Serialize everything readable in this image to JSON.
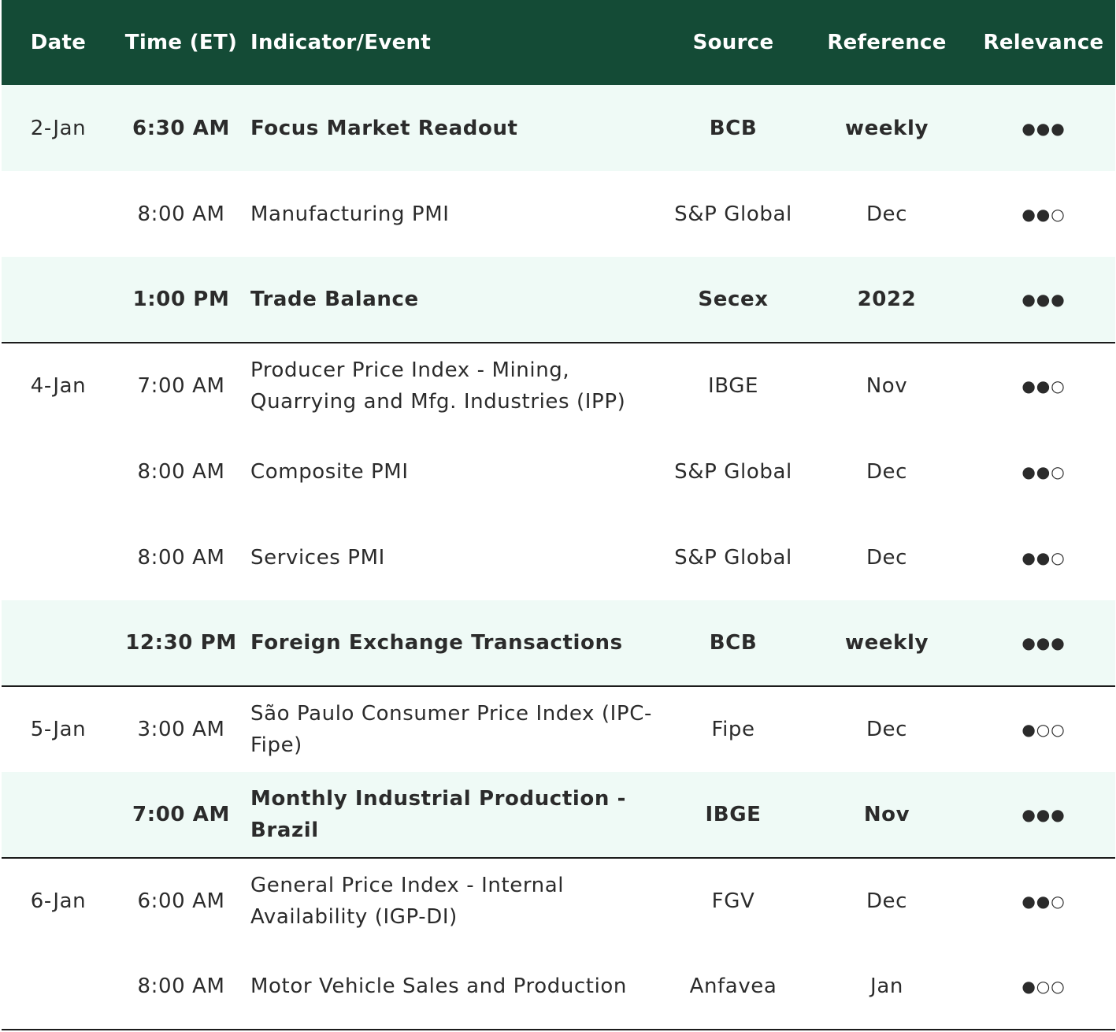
{
  "headers": [
    "Date",
    "Time (ET)",
    "Indicator/Event",
    "Source",
    "Reference",
    "Relevance"
  ],
  "rows": [
    {
      "date": "2-Jan",
      "time": "6:30 AM",
      "indicator": "Focus Market Readout",
      "source": "BCB",
      "reference": "weekly",
      "relevance": "●●●",
      "bold": true,
      "highlight": true,
      "group_end": false
    },
    {
      "date": "",
      "time": "8:00 AM",
      "indicator": "Manufacturing PMI",
      "source": "S&P Global",
      "reference": "Dec",
      "relevance": "●●○",
      "bold": false,
      "highlight": false,
      "group_end": false
    },
    {
      "date": "",
      "time": "1:00 PM",
      "indicator": "Trade Balance",
      "source": "Secex",
      "reference": "2022",
      "relevance": "●●●",
      "bold": true,
      "highlight": true,
      "group_end": true
    },
    {
      "date": "4-Jan",
      "time": "7:00 AM",
      "indicator": "Producer Price Index - Mining, Quarrying and Mfg. Industries (IPP)",
      "source": "IBGE",
      "reference": "Nov",
      "relevance": "●●○",
      "bold": false,
      "highlight": false,
      "group_end": false
    },
    {
      "date": "",
      "time": "8:00 AM",
      "indicator": "Composite PMI",
      "source": "S&P Global",
      "reference": "Dec",
      "relevance": "●●○",
      "bold": false,
      "highlight": false,
      "group_end": false
    },
    {
      "date": "",
      "time": "8:00 AM",
      "indicator": "Services PMI",
      "source": "S&P Global",
      "reference": "Dec",
      "relevance": "●●○",
      "bold": false,
      "highlight": false,
      "group_end": false
    },
    {
      "date": "",
      "time": "12:30 PM",
      "indicator": "Foreign Exchange Transactions",
      "source": "BCB",
      "reference": "weekly",
      "relevance": "●●●",
      "bold": true,
      "highlight": true,
      "group_end": true
    },
    {
      "date": "5-Jan",
      "time": "3:00 AM",
      "indicator": "São Paulo Consumer Price Index (IPC-Fipe)",
      "source": "Fipe",
      "reference": "Dec",
      "relevance": "●○○",
      "bold": false,
      "highlight": false,
      "group_end": false
    },
    {
      "date": "",
      "time": "7:00 AM",
      "indicator": "Monthly Industrial Production - Brazil",
      "source": "IBGE",
      "reference": "Nov",
      "relevance": "●●●",
      "bold": true,
      "highlight": true,
      "group_end": true
    },
    {
      "date": "6-Jan",
      "time": "6:00 AM",
      "indicator": "General Price Index - Internal Availability (IGP-DI)",
      "source": "FGV",
      "reference": "Dec",
      "relevance": "●●○",
      "bold": false,
      "highlight": false,
      "group_end": false
    },
    {
      "date": "",
      "time": "8:00 AM",
      "indicator": "Motor Vehicle Sales and Production",
      "source": "Anfavea",
      "reference": "Jan",
      "relevance": "●○○",
      "bold": false,
      "highlight": false,
      "group_end": true
    }
  ],
  "colors": {
    "header_bg": "#144b36",
    "highlight_bg": "#effaf6",
    "text": "#2b2b2b"
  }
}
